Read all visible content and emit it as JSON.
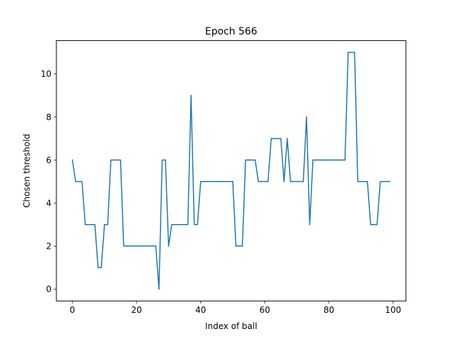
{
  "chart_data": {
    "type": "line",
    "title": "Epoch 566",
    "xlabel": "Index of ball",
    "ylabel": "Chosen threshold",
    "xlim": [
      -5,
      104
    ],
    "ylim": [
      -0.55,
      11.55
    ],
    "xticks": [
      0,
      20,
      40,
      60,
      80,
      100
    ],
    "yticks": [
      0,
      2,
      4,
      6,
      8,
      10
    ],
    "grid": false,
    "color": "#1f77b4",
    "series": [
      {
        "x": [
          0,
          1,
          2,
          3,
          4,
          5,
          6,
          7,
          8,
          9,
          10,
          11,
          12,
          13,
          14,
          15,
          16,
          17,
          18,
          19,
          20,
          21,
          22,
          23,
          24,
          25,
          26,
          27,
          28,
          29,
          30,
          31,
          32,
          33,
          34,
          35,
          36,
          37,
          38,
          39,
          40,
          41,
          42,
          43,
          44,
          45,
          46,
          47,
          48,
          49,
          50,
          51,
          52,
          53,
          54,
          55,
          56,
          57,
          58,
          59,
          60,
          61,
          62,
          63,
          64,
          65,
          66,
          67,
          68,
          69,
          70,
          71,
          72,
          73,
          74,
          75,
          76,
          77,
          78,
          79,
          80,
          81,
          82,
          83,
          84,
          85,
          86,
          87,
          88,
          89,
          90,
          91,
          92,
          93,
          94,
          95,
          96,
          97,
          98,
          99
        ],
        "y": [
          6,
          5,
          5,
          5,
          3,
          3,
          3,
          3,
          1,
          1,
          3,
          3,
          6,
          6,
          6,
          6,
          2,
          2,
          2,
          2,
          2,
          2,
          2,
          2,
          2,
          2,
          2,
          0,
          6,
          6,
          2,
          3,
          3,
          3,
          3,
          3,
          3,
          9,
          3,
          3,
          5,
          5,
          5,
          5,
          5,
          5,
          5,
          5,
          5,
          5,
          5,
          2,
          2,
          2,
          6,
          6,
          6,
          6,
          5,
          5,
          5,
          5,
          7,
          7,
          7,
          7,
          5,
          7,
          5,
          5,
          5,
          5,
          5,
          8,
          3,
          6,
          6,
          6,
          6,
          6,
          6,
          6,
          6,
          6,
          6,
          6,
          11,
          11,
          11,
          5,
          5,
          5,
          5,
          3,
          3,
          3,
          5,
          5,
          5,
          5
        ]
      }
    ]
  }
}
